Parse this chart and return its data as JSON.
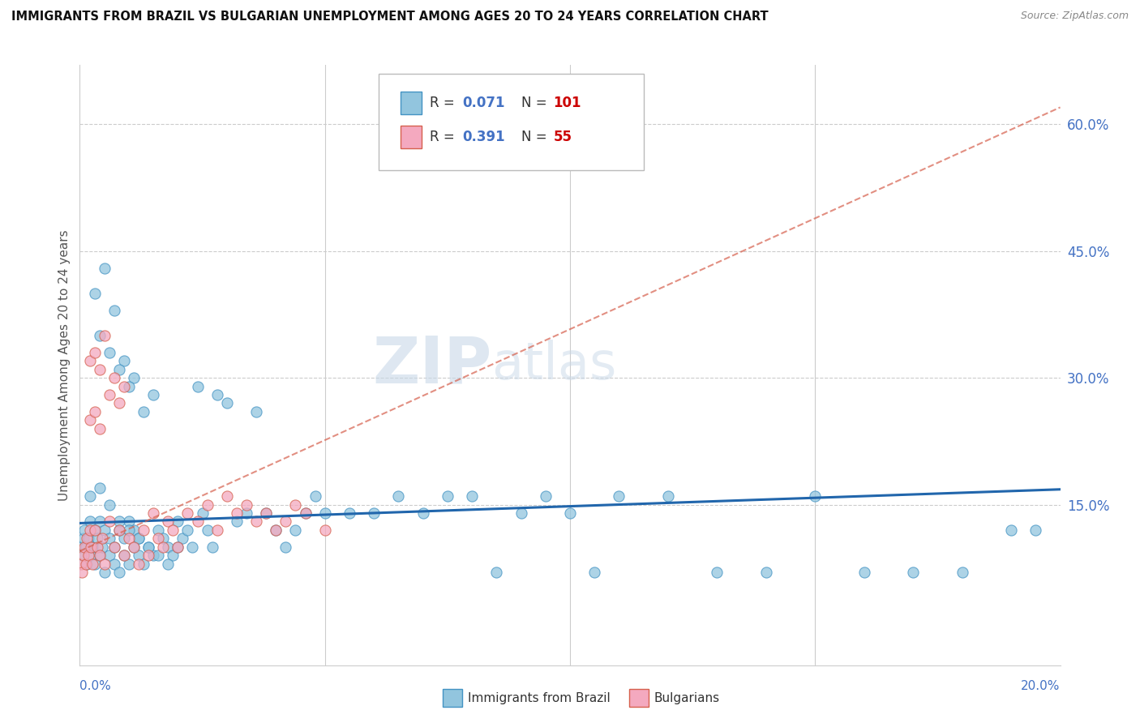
{
  "title": "IMMIGRANTS FROM BRAZIL VS BULGARIAN UNEMPLOYMENT AMONG AGES 20 TO 24 YEARS CORRELATION CHART",
  "source": "Source: ZipAtlas.com",
  "ylabel": "Unemployment Among Ages 20 to 24 years",
  "yticks_labels": [
    "15.0%",
    "30.0%",
    "45.0%",
    "60.0%"
  ],
  "ytick_vals": [
    0.15,
    0.3,
    0.45,
    0.6
  ],
  "xmin": 0.0,
  "xmax": 0.2,
  "ymin": -0.04,
  "ymax": 0.67,
  "legend_r1": "0.071",
  "legend_n1": "101",
  "legend_r2": "0.391",
  "legend_n2": "55",
  "color_brazil": "#92c5de",
  "color_brazil_edge": "#4393c3",
  "color_bulgaria": "#f4a9bf",
  "color_bulgaria_edge": "#d6604d",
  "color_trendline_brazil": "#2166ac",
  "color_trendline_bulgaria": "#d6604d",
  "brazil_x": [
    0.0003,
    0.0005,
    0.0008,
    0.001,
    0.0012,
    0.0015,
    0.0018,
    0.002,
    0.0022,
    0.0025,
    0.003,
    0.003,
    0.0035,
    0.004,
    0.004,
    0.0045,
    0.005,
    0.005,
    0.006,
    0.006,
    0.007,
    0.007,
    0.008,
    0.008,
    0.009,
    0.009,
    0.01,
    0.01,
    0.011,
    0.011,
    0.012,
    0.012,
    0.013,
    0.014,
    0.015,
    0.015,
    0.016,
    0.017,
    0.018,
    0.019,
    0.02,
    0.021,
    0.022,
    0.023,
    0.024,
    0.025,
    0.026,
    0.027,
    0.028,
    0.03,
    0.032,
    0.034,
    0.036,
    0.038,
    0.04,
    0.042,
    0.044,
    0.046,
    0.048,
    0.05,
    0.055,
    0.06,
    0.065,
    0.07,
    0.075,
    0.08,
    0.085,
    0.09,
    0.095,
    0.1,
    0.105,
    0.11,
    0.12,
    0.13,
    0.14,
    0.15,
    0.16,
    0.17,
    0.18,
    0.19,
    0.003,
    0.005,
    0.007,
    0.009,
    0.011,
    0.013,
    0.004,
    0.006,
    0.008,
    0.01,
    0.002,
    0.004,
    0.006,
    0.008,
    0.01,
    0.012,
    0.014,
    0.016,
    0.018,
    0.02,
    0.195
  ],
  "brazil_y": [
    0.1,
    0.09,
    0.11,
    0.12,
    0.1,
    0.08,
    0.11,
    0.13,
    0.09,
    0.1,
    0.12,
    0.08,
    0.11,
    0.09,
    0.13,
    0.1,
    0.12,
    0.07,
    0.11,
    0.09,
    0.1,
    0.08,
    0.12,
    0.07,
    0.11,
    0.09,
    0.13,
    0.08,
    0.1,
    0.12,
    0.09,
    0.11,
    0.08,
    0.1,
    0.28,
    0.09,
    0.12,
    0.11,
    0.1,
    0.09,
    0.13,
    0.11,
    0.12,
    0.1,
    0.29,
    0.14,
    0.12,
    0.1,
    0.28,
    0.27,
    0.13,
    0.14,
    0.26,
    0.14,
    0.12,
    0.1,
    0.12,
    0.14,
    0.16,
    0.14,
    0.14,
    0.14,
    0.16,
    0.14,
    0.16,
    0.16,
    0.07,
    0.14,
    0.16,
    0.14,
    0.07,
    0.16,
    0.16,
    0.07,
    0.07,
    0.16,
    0.07,
    0.07,
    0.07,
    0.12,
    0.4,
    0.43,
    0.38,
    0.32,
    0.3,
    0.26,
    0.35,
    0.33,
    0.31,
    0.29,
    0.16,
    0.17,
    0.15,
    0.13,
    0.12,
    0.11,
    0.1,
    0.09,
    0.08,
    0.1,
    0.12
  ],
  "bulgaria_x": [
    0.0003,
    0.0005,
    0.0008,
    0.001,
    0.0012,
    0.0015,
    0.0018,
    0.002,
    0.0022,
    0.0025,
    0.003,
    0.0035,
    0.004,
    0.0045,
    0.005,
    0.006,
    0.007,
    0.008,
    0.009,
    0.01,
    0.011,
    0.012,
    0.013,
    0.014,
    0.015,
    0.016,
    0.017,
    0.018,
    0.019,
    0.02,
    0.022,
    0.024,
    0.026,
    0.028,
    0.03,
    0.032,
    0.034,
    0.036,
    0.038,
    0.04,
    0.042,
    0.044,
    0.046,
    0.05,
    0.002,
    0.003,
    0.004,
    0.005,
    0.006,
    0.007,
    0.008,
    0.009,
    0.002,
    0.003,
    0.004
  ],
  "bulgaria_y": [
    0.08,
    0.07,
    0.09,
    0.1,
    0.08,
    0.11,
    0.09,
    0.12,
    0.1,
    0.08,
    0.12,
    0.1,
    0.09,
    0.11,
    0.08,
    0.13,
    0.1,
    0.12,
    0.09,
    0.11,
    0.1,
    0.08,
    0.12,
    0.09,
    0.14,
    0.11,
    0.1,
    0.13,
    0.12,
    0.1,
    0.14,
    0.13,
    0.15,
    0.12,
    0.16,
    0.14,
    0.15,
    0.13,
    0.14,
    0.12,
    0.13,
    0.15,
    0.14,
    0.12,
    0.32,
    0.33,
    0.31,
    0.35,
    0.28,
    0.3,
    0.27,
    0.29,
    0.25,
    0.26,
    0.24
  ],
  "watermark_zip": "ZIP",
  "watermark_atlas": "atlas",
  "legend_text_color": "#4472c4",
  "legend_n_color": "#ff0000"
}
